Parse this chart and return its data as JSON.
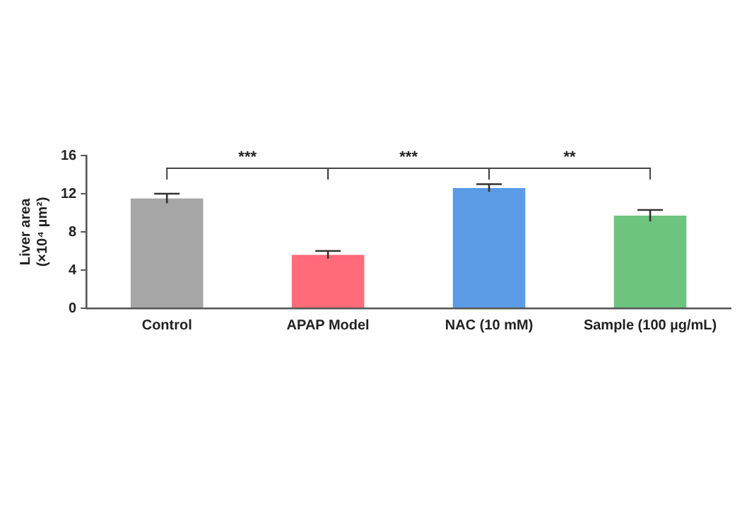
{
  "chart_data": {
    "type": "bar",
    "ylabel": "Liver area\n(×10⁴ µm²)",
    "categories": [
      "Control",
      "APAP Model",
      "NAC (10 mM)",
      "Sample (100 µg/mL)"
    ],
    "values": [
      11.5,
      5.6,
      12.6,
      9.7
    ],
    "colors": [
      "#a6a6a6",
      "#ff6b78",
      "#5b9be6",
      "#6cc47f"
    ],
    "errors": [
      0.5,
      0.4,
      0.4,
      0.6
    ],
    "ylim": [
      0,
      16
    ],
    "yticks": [
      0,
      4,
      8,
      12,
      16
    ],
    "grid": false,
    "legend": false,
    "annotations": [
      "***",
      "***",
      "**"
    ]
  }
}
